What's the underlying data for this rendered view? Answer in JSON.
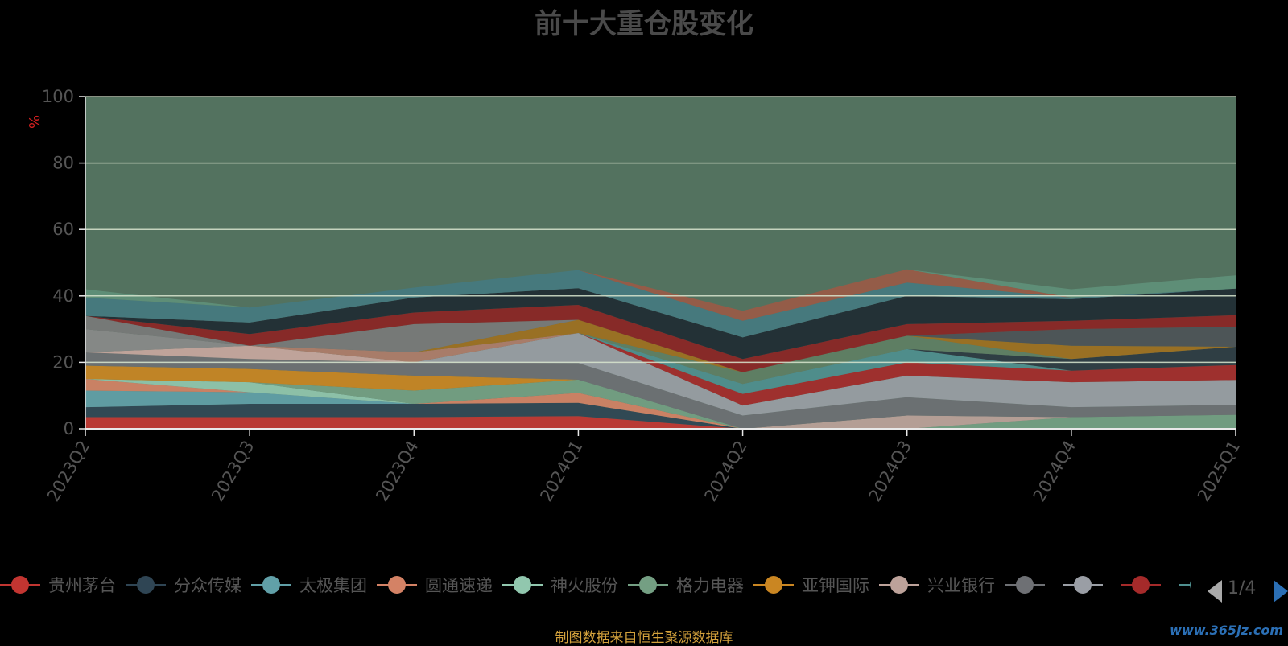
{
  "title": "前十大重仓股变化",
  "source_note": "制图数据来自恒生聚源数据库",
  "watermark": "www.365jz.com",
  "legend_pager": {
    "text": "1/4"
  },
  "colors": {
    "background": "#000000",
    "plot_area": "#53725f",
    "grid": "#d9e6cf"
  },
  "chart_data": {
    "type": "area",
    "stacked": true,
    "title": "前十大重仓股变化",
    "ylabel": "%",
    "ylim": [
      0,
      100
    ],
    "yticks": [
      0,
      20,
      40,
      60,
      80,
      100
    ],
    "grid": true,
    "legend_position": "bottom",
    "categories": [
      "2023Q2",
      "2023Q3",
      "2023Q4",
      "2024Q1",
      "2024Q2",
      "2024Q3",
      "2024Q4",
      "2025Q1"
    ],
    "series": [
      {
        "name": "贵州茅台",
        "color": "#c23531",
        "values": [
          3.5,
          3.5,
          3.5,
          3.8,
          0,
          0,
          0,
          0
        ]
      },
      {
        "name": "分众传媒",
        "color": "#2f4554",
        "values": [
          3,
          4,
          4,
          4,
          0,
          0,
          0,
          0
        ]
      },
      {
        "name": "太极集团",
        "color": "#61a0a8",
        "values": [
          5,
          3.5,
          0,
          0,
          0,
          0,
          0,
          0
        ]
      },
      {
        "name": "圆通速递",
        "color": "#d48265",
        "values": [
          3.5,
          0,
          0,
          3,
          0,
          0,
          0,
          0
        ]
      },
      {
        "name": "神火股份",
        "color": "#91c7ae",
        "values": [
          0,
          3,
          0,
          0,
          0,
          0,
          0,
          0
        ]
      },
      {
        "name": "格力电器",
        "color": "#749f83",
        "values": [
          0,
          0,
          4,
          4,
          0,
          0,
          3.5,
          4.2
        ]
      },
      {
        "name": "亚钾国际",
        "color": "#ca8622",
        "values": [
          4,
          4,
          4.5,
          0,
          0,
          0,
          0,
          0
        ]
      },
      {
        "name": "兴业银行",
        "color": "#bda29a",
        "values": [
          0,
          0,
          0,
          0,
          0,
          4,
          0,
          0
        ]
      },
      {
        "name": "",
        "color": "#6e7074",
        "values": [
          4,
          3,
          4,
          5,
          4,
          5.5,
          3,
          3
        ]
      },
      {
        "name": "",
        "color": "#9a9ea5",
        "values": [
          0,
          0,
          0,
          9,
          3,
          6.5,
          7.5,
          7.5
        ]
      },
      {
        "name": "",
        "color": "#a52a2a",
        "values": [
          0,
          0,
          0,
          0,
          3.5,
          4,
          3.5,
          4.5
        ]
      },
      {
        "name": "",
        "color": "#4f8f8f",
        "values": [
          0,
          0,
          0,
          0,
          3,
          4,
          0,
          0
        ]
      },
      {
        "name": "",
        "color": "#2c3a42",
        "values": [
          0,
          0,
          0,
          0,
          0,
          0,
          3.5,
          5.5
        ]
      },
      {
        "name": "",
        "color": "#3a3f44",
        "values": [
          0,
          0,
          0,
          0,
          0,
          0,
          0,
          0
        ]
      },
      {
        "name": "",
        "color": "#c9a7a0",
        "values": [
          0,
          4,
          0,
          0,
          0,
          0,
          0,
          0
        ]
      },
      {
        "name": "",
        "color": "#b07d6a",
        "values": [
          0,
          0,
          3,
          0,
          0,
          0,
          0,
          0
        ]
      },
      {
        "name": "",
        "color": "#5f7f64",
        "values": [
          0,
          0,
          0,
          0,
          3.5,
          4,
          0,
          0
        ]
      },
      {
        "name": "",
        "color": "#a07020",
        "values": [
          0,
          0,
          0,
          4,
          0,
          0,
          4,
          0
        ]
      },
      {
        "name": "",
        "color": "#8a8a8a",
        "values": [
          7,
          0,
          0,
          0,
          0,
          0,
          0,
          0
        ]
      },
      {
        "name": "",
        "color": "#4d5257",
        "values": [
          0,
          0,
          0,
          0,
          0,
          0,
          5,
          6
        ]
      },
      {
        "name": "",
        "color": "#7a7a7a",
        "values": [
          4,
          0,
          8.5,
          0,
          0,
          0,
          0,
          0
        ]
      },
      {
        "name": "",
        "color": "#8c2424",
        "values": [
          0,
          3.5,
          3.5,
          4.5,
          4,
          3.5,
          2.5,
          3.5
        ]
      },
      {
        "name": "",
        "color": "#1f2b33",
        "values": [
          0,
          3.5,
          4.5,
          5,
          6.5,
          8.5,
          6.5,
          8
        ]
      },
      {
        "name": "",
        "color": "#457a80",
        "values": [
          5.5,
          4.5,
          3,
          5.5,
          5,
          4,
          0.5,
          0
        ]
      },
      {
        "name": "",
        "color": "#9a5a46",
        "values": [
          0,
          0,
          0,
          0,
          3,
          4,
          0,
          0
        ]
      },
      {
        "name": "",
        "color": "#5f9079",
        "values": [
          2.5,
          0,
          0,
          0,
          0,
          0,
          2.5,
          4
        ]
      }
    ]
  }
}
